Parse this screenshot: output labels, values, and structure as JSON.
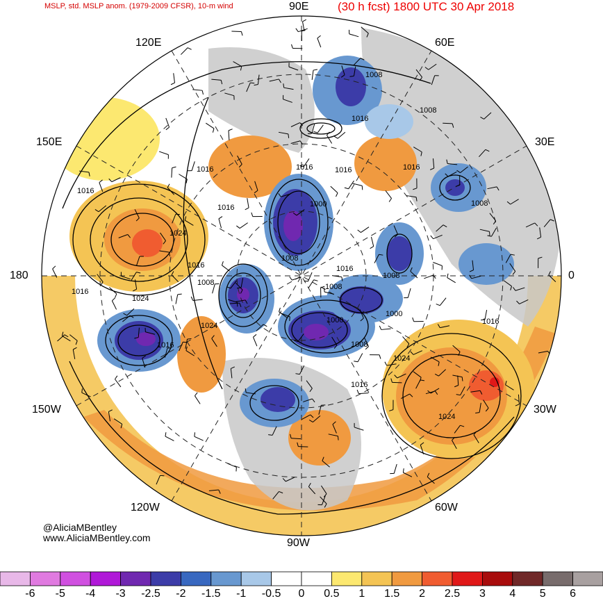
{
  "header": {
    "left_title": "MSLP, std. MSLP anom. (1979-2009 CFSR), 10-m wind",
    "right_title": "(30 h fcst) 1800 UTC 30 Apr 2018"
  },
  "longitude_labels": {
    "top": "90E",
    "top_left": "120E",
    "top_right": "60E",
    "upper_left": "150E",
    "upper_right": "30E",
    "left": "180",
    "right": "0",
    "lower_left": "150W",
    "lower_right": "30W",
    "bottom_left": "120W",
    "bottom_right": "60W",
    "bottom": "90W"
  },
  "isobar_labels": [
    "1008",
    "1008",
    "1016",
    "1016",
    "1016",
    "1016",
    "1016",
    "1000",
    "1024",
    "1016",
    "1008",
    "1016",
    "1008",
    "1016",
    "1008",
    "1024",
    "1008",
    "1000",
    "1000",
    "1016",
    "1008",
    "1024",
    "1016",
    "1024",
    "1008",
    "1016",
    "1024",
    "1016",
    "1016"
  ],
  "credits": {
    "handle": "@AliciaMBentley",
    "website": "www.AliciaMBentley.com"
  },
  "colorbar": {
    "ticks": [
      "-6",
      "-5",
      "-4",
      "-3",
      "-2.5",
      "-2",
      "-1.5",
      "-1",
      "-0.5",
      "0",
      "0.5",
      "1",
      "1.5",
      "2",
      "2.5",
      "3",
      "4",
      "5",
      "6"
    ],
    "colors": [
      "#e8b8e8",
      "#e07ae0",
      "#d050e0",
      "#b018d8",
      "#7028b0",
      "#3c3ca8",
      "#3868c0",
      "#6898d0",
      "#a8c8e8",
      "#ffffff",
      "#ffffff",
      "#fce870",
      "#f4c454",
      "#f09a40",
      "#f05c30",
      "#e01818",
      "#a80c0c",
      "#702828",
      "#786c6c",
      "#a8a0a0"
    ]
  }
}
